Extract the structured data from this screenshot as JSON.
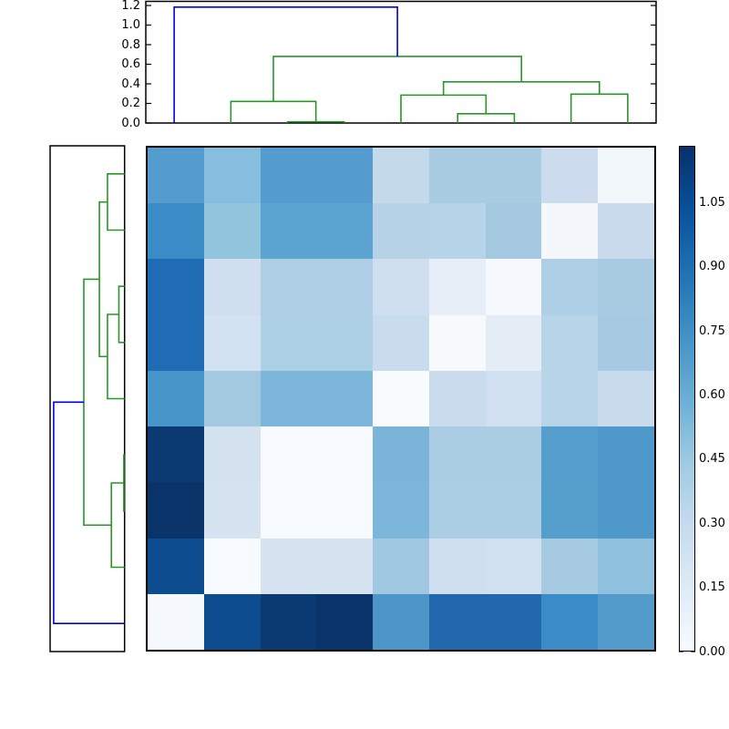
{
  "chart_data": {
    "type": "heatmap",
    "subtype": "clustermap-with-dendrograms",
    "title": "",
    "colormap": "Blues",
    "vmin": 0.0,
    "vmax": 1.183,
    "n_rows": 9,
    "n_cols": 9,
    "col_order": [
      "c1",
      "c2",
      "c3",
      "c4",
      "c5",
      "c6",
      "c7",
      "c8",
      "c9"
    ],
    "row_order_as_columns": [
      "c9",
      "c8",
      "c7",
      "c6",
      "c5",
      "c3",
      "c4",
      "c2",
      "c1"
    ],
    "values_note": "pairwise distances estimated by inverting the Blues colorbar",
    "values": [
      [
        0.66,
        0.48,
        0.67,
        0.67,
        0.3,
        0.43,
        0.42,
        0.29,
        0.0
      ],
      [
        0.77,
        0.44,
        0.64,
        0.64,
        0.37,
        0.38,
        0.44,
        0.0,
        0.29
      ],
      [
        0.9,
        0.27,
        0.42,
        0.42,
        0.27,
        0.12,
        0.0,
        0.44,
        0.42
      ],
      [
        0.9,
        0.26,
        0.42,
        0.42,
        0.3,
        0.0,
        0.12,
        0.38,
        0.43
      ],
      [
        0.7,
        0.45,
        0.56,
        0.56,
        0.0,
        0.3,
        0.27,
        0.37,
        0.3
      ],
      [
        1.16,
        0.24,
        0.0,
        0.01,
        0.56,
        0.42,
        0.42,
        0.64,
        0.67
      ],
      [
        1.16,
        0.24,
        0.01,
        0.0,
        0.56,
        0.42,
        0.42,
        0.64,
        0.67
      ],
      [
        1.06,
        0.0,
        0.24,
        0.24,
        0.45,
        0.26,
        0.27,
        0.44,
        0.48
      ],
      [
        0.0,
        1.06,
        1.16,
        1.16,
        0.7,
        0.9,
        0.9,
        0.77,
        0.66
      ]
    ],
    "cell_colors": [
      [
        "#549ccd",
        "#88bedd",
        "#549ccd",
        "#549ccd",
        "#c4d9ea",
        "#a9cce3",
        "#a9cce3",
        "#ccdcee",
        "#f2f7fc"
      ],
      [
        "#3b8bc6",
        "#93c4de",
        "#5ba3d0",
        "#5ba3d0",
        "#b5d2e7",
        "#b6d3e8",
        "#a5c8e1",
        "#f4f8fd",
        "#c8daec"
      ],
      [
        "#1f6cb4",
        "#cfdfef",
        "#adcee4",
        "#adcee4",
        "#cfdfef",
        "#e8eef7",
        "#f5f9fd",
        "#aecfe5",
        "#a9cce3"
      ],
      [
        "#1f6cb4",
        "#d3e2f0",
        "#aed0e5",
        "#aed0e5",
        "#c8dcee",
        "#f6fafd",
        "#e4ecf6",
        "#b8d4e8",
        "#a5cae2"
      ],
      [
        "#4796c9",
        "#a3c9e1",
        "#7cb6da",
        "#7cb6da",
        "#f8fbfe",
        "#c9dcee",
        "#d0e0f0",
        "#b7d4e9",
        "#c7dbed"
      ],
      [
        "#0b3a72",
        "#d4e2f0",
        "#f7fafe",
        "#f7fafe",
        "#7ab5d9",
        "#aacde3",
        "#aacde3",
        "#559ecd",
        "#4e98ca"
      ],
      [
        "#0a336a",
        "#d6e3f1",
        "#f7fafe",
        "#f7fafe",
        "#7cb6da",
        "#abcee4",
        "#abcee4",
        "#559fcd",
        "#4e98ca"
      ],
      [
        "#0d4c8e",
        "#f7fafe",
        "#d6e3f1",
        "#d6e3f1",
        "#a0c8e1",
        "#cfdfef",
        "#d2e1f0",
        "#a5cae2",
        "#8fc0dd"
      ],
      [
        "#f5f9fd",
        "#0d4c8e",
        "#0b3a72",
        "#0a336a",
        "#4d96c8",
        "#2268ae",
        "#2268ae",
        "#3b8bc6",
        "#539bcb"
      ]
    ],
    "link_colors": {
      "green": "#289628",
      "blue": "#0000ee"
    },
    "top_dendrogram": {
      "tick_labels": [
        "0.0",
        "0.2",
        "0.4",
        "0.6",
        "0.8",
        "1.0",
        "1.2"
      ],
      "tick_values": [
        0.0,
        0.2,
        0.4,
        0.6,
        0.8,
        1.0,
        1.2
      ],
      "ylim": [
        0,
        1.242
      ],
      "merges": [
        {
          "a": 2.5,
          "b": 3.5,
          "ha": 0,
          "hb": 0,
          "h": 0.012,
          "c": "green"
        },
        {
          "a": 5.5,
          "b": 6.5,
          "ha": 0,
          "hb": 0,
          "h": 0.095,
          "c": "green"
        },
        {
          "a": 1.5,
          "b": 3.0,
          "ha": 0,
          "hb": 0.012,
          "h": 0.22,
          "c": "green"
        },
        {
          "a": 4.5,
          "b": 6.0,
          "ha": 0,
          "hb": 0.095,
          "h": 0.285,
          "c": "green"
        },
        {
          "a": 7.5,
          "b": 8.5,
          "ha": 0,
          "hb": 0,
          "h": 0.295,
          "c": "green"
        },
        {
          "a": 5.25,
          "b": 8.0,
          "ha": 0.285,
          "hb": 0.295,
          "h": 0.42,
          "c": "green"
        },
        {
          "a": 2.25,
          "b": 6.625,
          "ha": 0.22,
          "hb": 0.42,
          "h": 0.68,
          "c": "green"
        },
        {
          "a": 0.5,
          "b": 4.4375,
          "ha": 0,
          "hb": 0.68,
          "h": 1.183,
          "c": "blue"
        }
      ]
    },
    "left_dendrogram": {
      "xlim": [
        0,
        1.242
      ],
      "merges": [
        {
          "a": 0.5,
          "b": 1.5,
          "ha": 0,
          "hb": 0,
          "h": 0.285,
          "c": "green"
        },
        {
          "a": 2.5,
          "b": 3.5,
          "ha": 0,
          "hb": 0,
          "h": 0.095,
          "c": "green"
        },
        {
          "a": 3.0,
          "b": 4.5,
          "ha": 0.095,
          "hb": 0,
          "h": 0.285,
          "c": "green"
        },
        {
          "a": 1.0,
          "b": 3.75,
          "ha": 0.285,
          "hb": 0.285,
          "h": 0.42,
          "c": "green"
        },
        {
          "a": 5.5,
          "b": 6.5,
          "ha": 0,
          "hb": 0,
          "h": 0.012,
          "c": "green"
        },
        {
          "a": 6.0,
          "b": 7.5,
          "ha": 0.012,
          "hb": 0,
          "h": 0.22,
          "c": "green"
        },
        {
          "a": 2.375,
          "b": 6.75,
          "ha": 0.42,
          "hb": 0.22,
          "h": 0.68,
          "c": "green"
        },
        {
          "a": 4.5625,
          "b": 8.5,
          "ha": 0.68,
          "hb": 0,
          "h": 1.183,
          "c": "blue"
        }
      ]
    },
    "colorbar": {
      "tick_labels": [
        "0.00",
        "0.15",
        "0.30",
        "0.45",
        "0.60",
        "0.75",
        "0.90",
        "1.05"
      ],
      "tick_values": [
        0.0,
        0.15,
        0.3,
        0.45,
        0.6,
        0.75,
        0.9,
        1.05
      ],
      "gradient_bottom_to_top": [
        "#f7fbff",
        "#deebf5",
        "#c6dbef",
        "#9ecae1",
        "#6baed6",
        "#4292c6",
        "#2171b5",
        "#08519c",
        "#08306b"
      ]
    }
  }
}
